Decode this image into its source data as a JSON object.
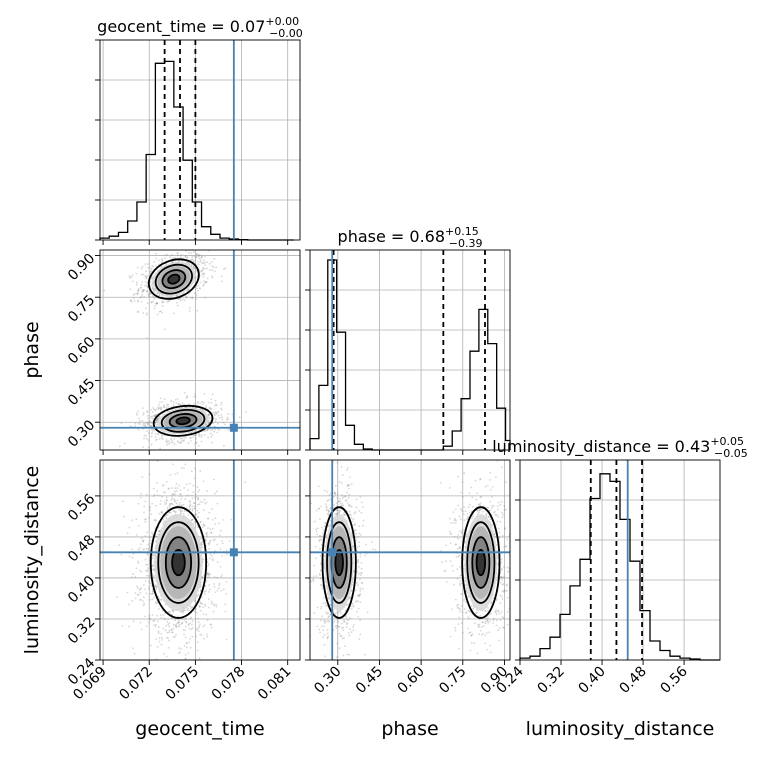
{
  "chart_data": {
    "type": "corner",
    "parameters": [
      "geocent_time",
      "phase",
      "luminosity_distance"
    ],
    "truth_color": "#4682b4",
    "truths": {
      "geocent_time": 0.0775,
      "phase": 0.28,
      "luminosity_distance": 0.45
    },
    "titles": [
      {
        "param": "geocent_time",
        "text": "geocent_time = 0.07",
        "sup": "+0.00",
        "sub": "−0.00"
      },
      {
        "param": "phase",
        "text": "phase = 0.68",
        "sup": "+0.15",
        "sub": "−0.39"
      },
      {
        "param": "luminosity_distance",
        "text": "luminosity_distance = 0.43",
        "sup": "+0.05",
        "sub": "−0.05"
      }
    ],
    "axes": {
      "geocent_time": {
        "label": "geocent_time",
        "range": [
          0.0688,
          0.0818
        ],
        "ticks": [
          0.069,
          0.072,
          0.075,
          0.078,
          0.081
        ],
        "tick_labels": [
          "0.069",
          "0.072",
          "0.075",
          "0.078",
          "0.081"
        ]
      },
      "phase": {
        "label": "phase",
        "range": [
          0.2,
          0.92
        ],
        "ticks": [
          0.3,
          0.45,
          0.6,
          0.75,
          0.9
        ],
        "tick_labels": [
          "0.30",
          "0.45",
          "0.60",
          "0.75",
          "0.90"
        ]
      },
      "luminosity_distance": {
        "label": "luminosity_distance",
        "range": [
          0.24,
          0.63
        ],
        "ticks": [
          0.24,
          0.32,
          0.4,
          0.48,
          0.56
        ],
        "tick_labels": [
          "0.24",
          "0.32",
          "0.40",
          "0.48",
          "0.56"
        ]
      }
    },
    "histograms": {
      "geocent_time": {
        "edges": [
          0.0688,
          0.0694,
          0.07,
          0.0706,
          0.0712,
          0.0718,
          0.0724,
          0.073,
          0.0736,
          0.0742,
          0.0748,
          0.0754,
          0.076,
          0.0766,
          0.0772,
          0.0778,
          0.0784,
          0.079,
          0.0796,
          0.0802,
          0.0808,
          0.0814
        ],
        "counts": [
          0.01,
          0.02,
          0.04,
          0.1,
          0.2,
          0.45,
          0.93,
          0.94,
          0.7,
          0.42,
          0.2,
          0.07,
          0.03,
          0.01,
          0.005,
          0.002,
          0,
          0,
          0,
          0,
          0
        ],
        "quantiles": [
          0.073,
          0.074,
          0.075
        ]
      },
      "phase": {
        "edges": [
          0.2,
          0.232,
          0.264,
          0.296,
          0.328,
          0.36,
          0.392,
          0.424,
          0.456,
          0.488,
          0.52,
          0.552,
          0.584,
          0.616,
          0.648,
          0.68,
          0.712,
          0.744,
          0.776,
          0.808,
          0.84,
          0.872,
          0.904,
          0.92
        ],
        "counts": [
          0.06,
          0.34,
          1.0,
          0.62,
          0.13,
          0.03,
          0.005,
          0,
          0,
          0,
          0,
          0,
          0,
          0,
          0,
          0.02,
          0.1,
          0.27,
          0.52,
          0.74,
          0.56,
          0.22,
          0.05
        ],
        "quantiles": [
          0.285,
          0.68,
          0.83
        ]
      },
      "luminosity_distance": {
        "edges": [
          0.24,
          0.2595,
          0.279,
          0.2985,
          0.318,
          0.3375,
          0.357,
          0.3765,
          0.396,
          0.4155,
          0.435,
          0.4545,
          0.474,
          0.4935,
          0.513,
          0.5325,
          0.552,
          0.5715,
          0.591,
          0.6105,
          0.63
        ],
        "counts": [
          0.01,
          0.02,
          0.06,
          0.12,
          0.24,
          0.39,
          0.53,
          0.85,
          0.98,
          0.94,
          0.74,
          0.52,
          0.26,
          0.1,
          0.05,
          0.02,
          0.01,
          0.005,
          0,
          0
        ],
        "quantiles": [
          0.378,
          0.428,
          0.478
        ]
      }
    },
    "pairs": [
      {
        "x": "geocent_time",
        "y": "phase"
      },
      {
        "x": "geocent_time",
        "y": "luminosity_distance"
      },
      {
        "x": "phase",
        "y": "luminosity_distance"
      }
    ]
  }
}
